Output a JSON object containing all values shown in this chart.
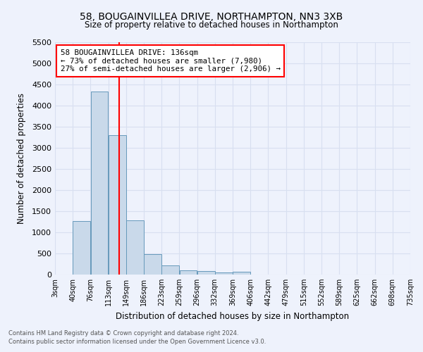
{
  "title": "58, BOUGAINVILLEA DRIVE, NORTHAMPTON, NN3 3XB",
  "subtitle": "Size of property relative to detached houses in Northampton",
  "xlabel": "Distribution of detached houses by size in Northampton",
  "ylabel": "Number of detached properties",
  "footnote1": "Contains HM Land Registry data © Crown copyright and database right 2024.",
  "footnote2": "Contains public sector information licensed under the Open Government Licence v3.0.",
  "bin_labels": [
    "3sqm",
    "40sqm",
    "76sqm",
    "113sqm",
    "149sqm",
    "186sqm",
    "223sqm",
    "259sqm",
    "296sqm",
    "332sqm",
    "369sqm",
    "406sqm",
    "442sqm",
    "479sqm",
    "515sqm",
    "552sqm",
    "589sqm",
    "625sqm",
    "662sqm",
    "698sqm",
    "735sqm"
  ],
  "bar_values": [
    0,
    1270,
    4330,
    3300,
    1290,
    480,
    215,
    100,
    80,
    55,
    60,
    0,
    0,
    0,
    0,
    0,
    0,
    0,
    0,
    0
  ],
  "bar_color": "#c9d9ea",
  "bar_edge_color": "#6699bb",
  "vline_x": 136,
  "vline_color": "red",
  "ylim": [
    0,
    5500
  ],
  "yticks": [
    0,
    500,
    1000,
    1500,
    2000,
    2500,
    3000,
    3500,
    4000,
    4500,
    5000,
    5500
  ],
  "annotation_title": "58 BOUGAINVILLEA DRIVE: 136sqm",
  "annotation_line1": "← 73% of detached houses are smaller (7,980)",
  "annotation_line2": "27% of semi-detached houses are larger (2,906) →",
  "annotation_box_color": "white",
  "annotation_box_edge": "red",
  "grid_color": "#d8dff0",
  "bg_color": "#eef2fc"
}
